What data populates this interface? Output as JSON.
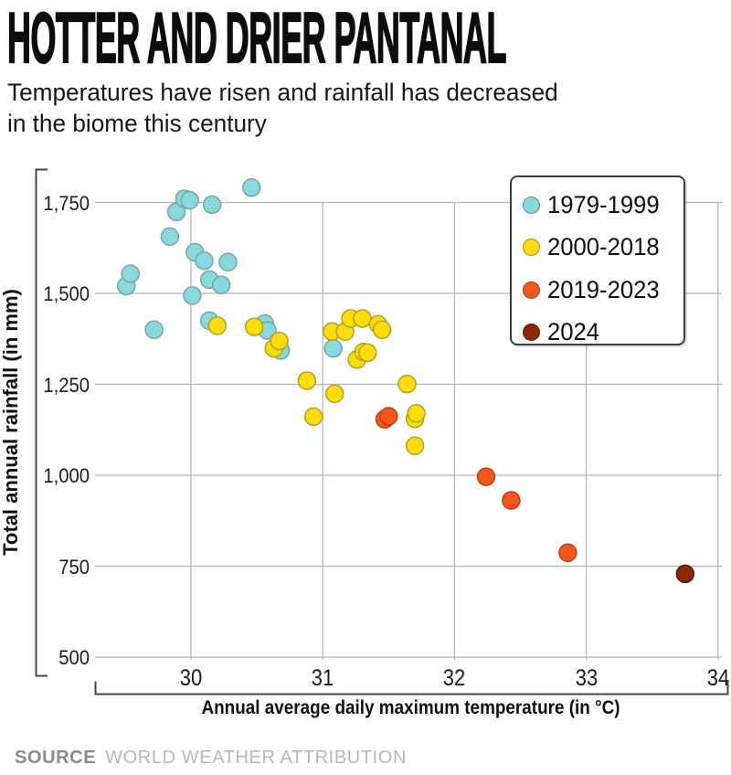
{
  "header": {
    "title": "HOTTER AND DRIER PANTANAL",
    "subtitle_line1": "Temperatures have risen and rainfall has decreased",
    "subtitle_line2": "in the biome this century"
  },
  "footer": {
    "source_label": "SOURCE",
    "source_value": "WORLD WEATHER ATTRIBUTION"
  },
  "chart_data": {
    "type": "scatter",
    "title": "Hotter and drier Pantanal",
    "xlabel": "Annual average daily maximum temperature (in °C)",
    "ylabel": "Total annual rainfall (in mm)",
    "xlim": [
      29.27,
      34.05
    ],
    "ylim": [
      450,
      1850
    ],
    "x_ticks": [
      30,
      31,
      32,
      33,
      34
    ],
    "y_ticks": [
      1750,
      1500,
      1250,
      1000,
      750,
      500
    ],
    "y_tick_labels": [
      "1,750",
      "1,500",
      "1,250",
      "1,000",
      "750",
      "500"
    ],
    "grid": true,
    "legend_position": "top-right",
    "marker_radius": 9.5,
    "grid_color": "#b3b3b3",
    "axis_color": "#454545",
    "series": [
      {
        "name": "1979-1999",
        "color": "#8AD8DC",
        "stroke": "#72A6AA",
        "points": [
          [
            29.51,
            1520
          ],
          [
            29.54,
            1554
          ],
          [
            29.72,
            1400
          ],
          [
            29.84,
            1656
          ],
          [
            29.89,
            1724
          ],
          [
            29.95,
            1760
          ],
          [
            29.99,
            1756
          ],
          [
            30.01,
            1494
          ],
          [
            30.03,
            1613
          ],
          [
            30.1,
            1590
          ],
          [
            30.14,
            1538
          ],
          [
            30.14,
            1425
          ],
          [
            30.16,
            1744
          ],
          [
            30.23,
            1523
          ],
          [
            30.28,
            1586
          ],
          [
            30.46,
            1791
          ],
          [
            30.56,
            1417
          ],
          [
            30.58,
            1398
          ],
          [
            30.68,
            1343
          ],
          [
            31.08,
            1349
          ]
        ]
      },
      {
        "name": "2000-2018",
        "color": "#FCDC0A",
        "stroke": "#B79E1C",
        "points": [
          [
            30.2,
            1411
          ],
          [
            30.48,
            1408
          ],
          [
            30.63,
            1349
          ],
          [
            30.67,
            1369
          ],
          [
            30.88,
            1260
          ],
          [
            30.93,
            1161
          ],
          [
            31.07,
            1395
          ],
          [
            31.09,
            1224
          ],
          [
            31.17,
            1395
          ],
          [
            31.21,
            1431
          ],
          [
            31.26,
            1318
          ],
          [
            31.3,
            1431
          ],
          [
            31.31,
            1339
          ],
          [
            31.34,
            1337
          ],
          [
            31.42,
            1415
          ],
          [
            31.45,
            1400
          ],
          [
            31.64,
            1251
          ],
          [
            31.7,
            1155
          ],
          [
            31.7,
            1081
          ],
          [
            31.71,
            1170
          ]
        ]
      },
      {
        "name": "2019-2023",
        "color": "#F4571D",
        "stroke": "#C23D10",
        "points": [
          [
            31.47,
            1154
          ],
          [
            31.5,
            1162
          ],
          [
            32.24,
            996
          ],
          [
            32.43,
            931
          ],
          [
            32.86,
            787
          ]
        ]
      },
      {
        "name": "2024",
        "color": "#8B2807",
        "stroke": "#521803",
        "points": [
          [
            33.75,
            729
          ]
        ]
      }
    ]
  }
}
